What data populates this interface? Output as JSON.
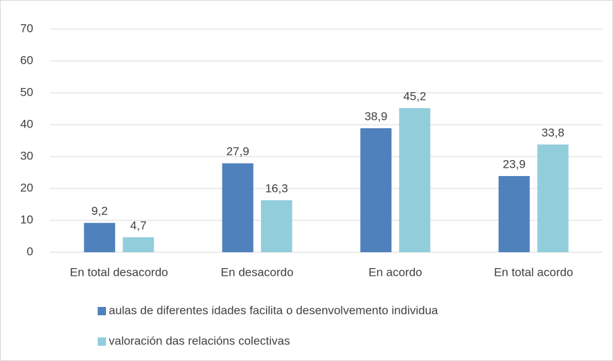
{
  "chart_data": {
    "type": "bar",
    "categories": [
      "En total desacordo",
      "En desacordo",
      "En acordo",
      "En total acordo"
    ],
    "series": [
      {
        "name": "aulas de diferentes idades facilita o desenvolvemento individua",
        "color": "#4f81bd",
        "values": [
          9.2,
          27.9,
          38.9,
          23.9
        ],
        "value_labels": [
          "9,2",
          "27,9",
          "38,9",
          "23,9"
        ]
      },
      {
        "name": "valoración das relacións colectivas",
        "color": "#92cddc",
        "values": [
          4.7,
          16.3,
          45.2,
          33.8
        ],
        "value_labels": [
          "4,7",
          "16,3",
          "45,2",
          "33,8"
        ]
      }
    ],
    "ylim": [
      0,
      70
    ],
    "yticks": [
      0,
      10,
      20,
      30,
      40,
      50,
      60,
      70
    ],
    "grid": true,
    "legend": "bottom"
  }
}
